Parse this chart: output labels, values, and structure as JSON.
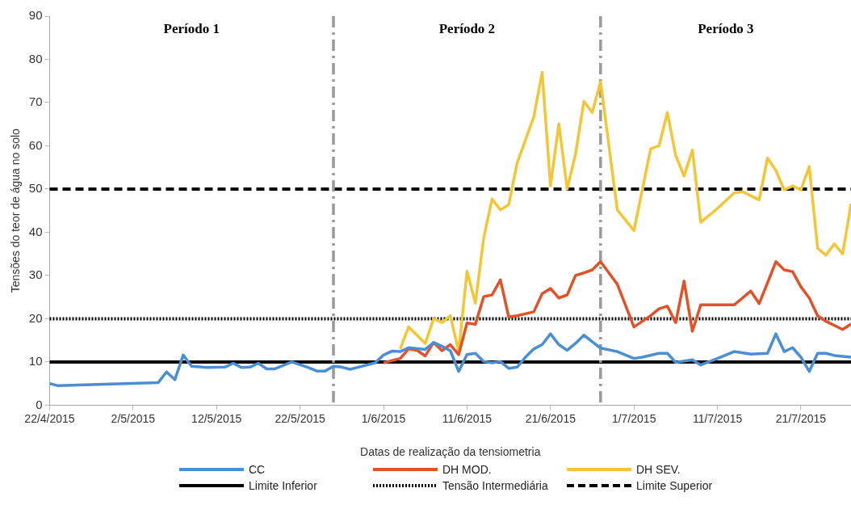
{
  "chart_data": {
    "type": "line",
    "xlabel": "Datas de realização da tensiometria",
    "ylabel": "Tensões do teor de água no solo",
    "xlim": [
      "2015-04-22",
      "2015-07-27"
    ],
    "xticks": [
      {
        "value": "2015-04-22",
        "label": "22/4/2015"
      },
      {
        "value": "2015-05-02",
        "label": "2/5/2015"
      },
      {
        "value": "2015-05-12",
        "label": "12/5/2015"
      },
      {
        "value": "2015-05-22",
        "label": "22/5/2015"
      },
      {
        "value": "2015-06-01",
        "label": "1/6/2015"
      },
      {
        "value": "2015-06-11",
        "label": "11/6/2015"
      },
      {
        "value": "2015-06-21",
        "label": "21/6/2015"
      },
      {
        "value": "2015-07-01",
        "label": "1/7/2015"
      },
      {
        "value": "2015-07-11",
        "label": "11/7/2015"
      },
      {
        "value": "2015-07-21",
        "label": "21/7/2015"
      }
    ],
    "ylim": [
      0,
      90
    ],
    "yticks": [
      0,
      10,
      20,
      30,
      40,
      50,
      60,
      70,
      80,
      90
    ],
    "grid": false,
    "legend": "bottom",
    "marker": "none",
    "line_style": "solid",
    "series": [
      {
        "name": "CC",
        "color": "#4a8fd4",
        "x": [
          "2015-04-22",
          "2015-04-23",
          "2015-05-05",
          "2015-05-06",
          "2015-05-07",
          "2015-05-08",
          "2015-05-09",
          "2015-05-11",
          "2015-05-13",
          "2015-05-14",
          "2015-05-15",
          "2015-05-16",
          "2015-05-17",
          "2015-05-18",
          "2015-05-19",
          "2015-05-21",
          "2015-05-23",
          "2015-05-24",
          "2015-05-25",
          "2015-05-26",
          "2015-05-27",
          "2015-05-28",
          "2015-05-29",
          "2015-05-31",
          "2015-06-01",
          "2015-06-02",
          "2015-06-03",
          "2015-06-04",
          "2015-06-06",
          "2015-06-07",
          "2015-06-08",
          "2015-06-09",
          "2015-06-10",
          "2015-06-11",
          "2015-06-12",
          "2015-06-13",
          "2015-06-14",
          "2015-06-15",
          "2015-06-16",
          "2015-06-17",
          "2015-06-18",
          "2015-06-19",
          "2015-06-20",
          "2015-06-21",
          "2015-06-22",
          "2015-06-23",
          "2015-06-24",
          "2015-06-25",
          "2015-06-26",
          "2015-06-27",
          "2015-06-29",
          "2015-07-01",
          "2015-07-02",
          "2015-07-04",
          "2015-07-05",
          "2015-07-06",
          "2015-07-08",
          "2015-07-09",
          "2015-07-11",
          "2015-07-13",
          "2015-07-15",
          "2015-07-17",
          "2015-07-18",
          "2015-07-19",
          "2015-07-20",
          "2015-07-21",
          "2015-07-22",
          "2015-07-23",
          "2015-07-24",
          "2015-07-25",
          "2015-07-27"
        ],
        "values": [
          5.0,
          4.5,
          5.2,
          7.7,
          5.9,
          11.6,
          9,
          8.7,
          8.8,
          9.7,
          8.7,
          8.8,
          9.7,
          8.4,
          8.4,
          10,
          8.7,
          7.9,
          7.9,
          9,
          8.8,
          8.3,
          8.8,
          9.8,
          11.6,
          12.5,
          12.4,
          13.3,
          12.9,
          14.5,
          13.6,
          12.6,
          7.8,
          11.7,
          12,
          10.1,
          9.8,
          10.1,
          8.5,
          8.8,
          11.1,
          13,
          14,
          16.5,
          14,
          12.7,
          14.3,
          16.2,
          14.7,
          13.2,
          12.4,
          10.8,
          11.1,
          12,
          12,
          9.9,
          10.5,
          9.3,
          10.8,
          12.4,
          11.8,
          12,
          16.5,
          12.4,
          13.3,
          11.1,
          7.8,
          12,
          12,
          11.5,
          11.1
        ]
      },
      {
        "name": "DH MOD.",
        "color": "#e0522a",
        "x": [
          "2015-06-01",
          "2015-06-03",
          "2015-06-04",
          "2015-06-05",
          "2015-06-06",
          "2015-06-07",
          "2015-06-08",
          "2015-06-09",
          "2015-06-10",
          "2015-06-11",
          "2015-06-12",
          "2015-06-13",
          "2015-06-14",
          "2015-06-15",
          "2015-06-16",
          "2015-06-17",
          "2015-06-19",
          "2015-06-20",
          "2015-06-21",
          "2015-06-22",
          "2015-06-23",
          "2015-06-24",
          "2015-06-25",
          "2015-06-26",
          "2015-06-27",
          "2015-06-28",
          "2015-06-29",
          "2015-07-01",
          "2015-07-02",
          "2015-07-03",
          "2015-07-04",
          "2015-07-05",
          "2015-07-06",
          "2015-07-07",
          "2015-07-08",
          "2015-07-09",
          "2015-07-11",
          "2015-07-13",
          "2015-07-14",
          "2015-07-15",
          "2015-07-16",
          "2015-07-17",
          "2015-07-18",
          "2015-07-19",
          "2015-07-20",
          "2015-07-21",
          "2015-07-22",
          "2015-07-23",
          "2015-07-24",
          "2015-07-26",
          "2015-07-27"
        ],
        "values": [
          9.8,
          10.8,
          13,
          12.7,
          11.4,
          14.5,
          12.6,
          14,
          11.7,
          19,
          18.7,
          25.1,
          25.5,
          29,
          20.4,
          20.7,
          21.6,
          25.8,
          27,
          24.8,
          25.5,
          30,
          30.6,
          31.3,
          33.2,
          30.6,
          28,
          18.1,
          19.4,
          20.7,
          22.3,
          22.9,
          19.1,
          28.7,
          17.1,
          23.2,
          23.2,
          23.2,
          24.8,
          26.4,
          23.5,
          28.3,
          33.2,
          31.3,
          30.9,
          27.4,
          24.8,
          20.7,
          19.4,
          17.5,
          18.8
        ]
      },
      {
        "name": "DH SEV.",
        "color": "#f2c637",
        "x": [
          "2015-06-03",
          "2015-06-04",
          "2015-06-06",
          "2015-06-07",
          "2015-06-08",
          "2015-06-09",
          "2015-06-10",
          "2015-06-11",
          "2015-06-12",
          "2015-06-13",
          "2015-06-14",
          "2015-06-15",
          "2015-06-16",
          "2015-06-17",
          "2015-06-19",
          "2015-06-20",
          "2015-06-21",
          "2015-06-22",
          "2015-06-23",
          "2015-06-24",
          "2015-06-25",
          "2015-06-26",
          "2015-06-27",
          "2015-06-29",
          "2015-07-01",
          "2015-07-03",
          "2015-07-04",
          "2015-07-05",
          "2015-07-06",
          "2015-07-07",
          "2015-07-08",
          "2015-07-09",
          "2015-07-11",
          "2015-07-13",
          "2015-07-14",
          "2015-07-16",
          "2015-07-17",
          "2015-07-18",
          "2015-07-19",
          "2015-07-20",
          "2015-07-21",
          "2015-07-22",
          "2015-07-23",
          "2015-07-24",
          "2015-07-25",
          "2015-07-26",
          "2015-07-27"
        ],
        "values": [
          13,
          18.1,
          14.3,
          20,
          19.1,
          20.7,
          12.4,
          31,
          23.6,
          38.7,
          47.7,
          45.2,
          46.4,
          56,
          66.7,
          77,
          50.7,
          65.1,
          50,
          58.1,
          70.3,
          67.7,
          74.8,
          45.2,
          40.4,
          59.3,
          60,
          67.7,
          57.8,
          53,
          59,
          42.3,
          45.5,
          49.1,
          49.4,
          47.5,
          57.2,
          54.3,
          49.8,
          50.7,
          49.8,
          55.2,
          36.3,
          34.7,
          37.3,
          35,
          46.6
        ]
      }
    ],
    "ref_lines": [
      {
        "axis": "y",
        "value": 10,
        "label": "Limite Inferior",
        "color": "#000000",
        "line_style": "solid"
      },
      {
        "axis": "y",
        "value": 20,
        "label": "Tensão Intermediária",
        "color": "#000000",
        "line_style": "dotted"
      },
      {
        "axis": "y",
        "value": 50,
        "label": "Limite Superior",
        "color": "#000000",
        "line_style": "dashed"
      },
      {
        "axis": "x",
        "value": "2015-05-26",
        "color": "#999999",
        "line_style": "dashed"
      },
      {
        "axis": "x",
        "value": "2015-06-27",
        "color": "#999999",
        "line_style": "dashed"
      }
    ],
    "annotations": [
      "Período 1",
      "Período 2",
      "Período 3"
    ]
  }
}
